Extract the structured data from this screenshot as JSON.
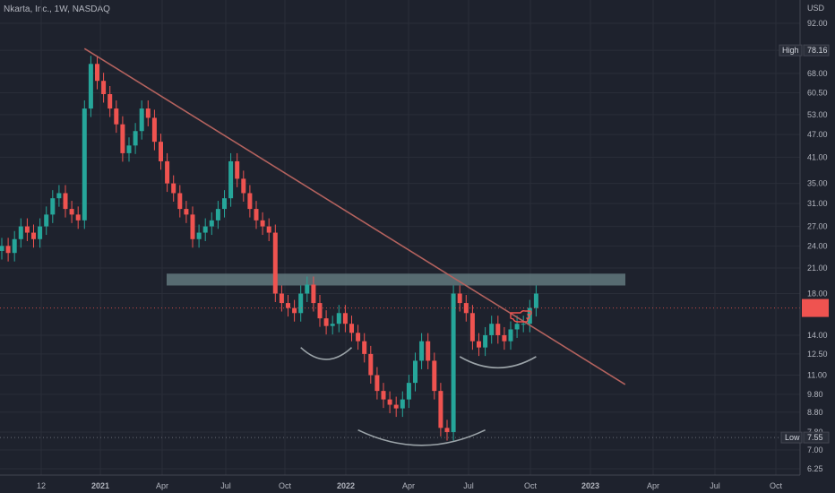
{
  "chart_data": {
    "type": "candlestick",
    "title": "Nkarta, Inc., 1W, NASDAQ",
    "currency": "USD",
    "scale": "log",
    "ylim": [
      6.0,
      100.0
    ],
    "y_ticks": [
      "92.00",
      "78.16",
      "68.00",
      "60.50",
      "53.00",
      "47.00",
      "41.00",
      "35.00",
      "31.00",
      "27.00",
      "24.00",
      "21.00",
      "18.00",
      "14.00",
      "12.50",
      "11.00",
      "9.80",
      "8.80",
      "7.80",
      "7.00",
      "6.25"
    ],
    "x_ticks": [
      "12",
      "2021",
      "Apr",
      "Jul",
      "Oct",
      "2022",
      "Apr",
      "Jul",
      "Oct",
      "2023",
      "Apr",
      "Jul",
      "Oct"
    ],
    "high": {
      "label": "High",
      "value": "78.16"
    },
    "low": {
      "label": "Low",
      "value": "7.55"
    },
    "last_price": 16.5,
    "resistance_zone": {
      "low": 18.9,
      "high": 20.3
    },
    "trendline": {
      "from": {
        "week": 13,
        "price": 79
      },
      "to": {
        "week": 98,
        "price": 10.4
      }
    },
    "arcs": [
      {
        "name": "left-shoulder",
        "from_week": 47,
        "to_week": 55,
        "price_edges": 13.0,
        "price_bottom": 12.1
      },
      {
        "name": "head",
        "from_week": 56,
        "to_week": 76,
        "price_edges": 7.9,
        "price_bottom": 7.2
      },
      {
        "name": "right-shoulder",
        "from_week": 72,
        "to_week": 84,
        "price_edges": 12.3,
        "price_bottom": 11.5
      }
    ],
    "closes": [
      24,
      23,
      25,
      27,
      26,
      25,
      27,
      29,
      32,
      33,
      30,
      29,
      28,
      55,
      72,
      65,
      60,
      55,
      50,
      42,
      44,
      48,
      55,
      52,
      45,
      40,
      35,
      33,
      30,
      29,
      25,
      26,
      27,
      28,
      30,
      32,
      40,
      36,
      33,
      30,
      28,
      27,
      26,
      18,
      17,
      16.5,
      16,
      18,
      19,
      17,
      15.5,
      14.8,
      15,
      16,
      15,
      14.2,
      13.5,
      12.5,
      11,
      10,
      9.5,
      9.2,
      9,
      9.5,
      10.5,
      12,
      13.5,
      12,
      10,
      8,
      7.8,
      18,
      17,
      16,
      13.5,
      13,
      14,
      15,
      14,
      13.5,
      14.5,
      15,
      15,
      16.5,
      18
    ],
    "week0_label_index": 7
  }
}
